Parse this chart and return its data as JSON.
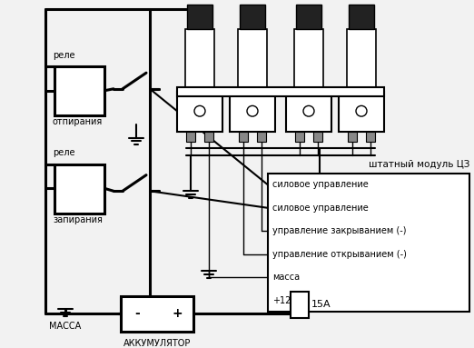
{
  "bg_color": "#f2f2f2",
  "line_color": "#000000",
  "relay1_label": [
    "реле",
    "отпирания"
  ],
  "relay2_label": [
    "реле",
    "запирания"
  ],
  "module_label": "штатный модуль ЦЗ",
  "connector_rows": [
    "силовое управление",
    "силовое управление",
    "управление закрыванием (-)",
    "управление открыванием (-)",
    "масса",
    "+12"
  ],
  "battery_labels": [
    "МАССА",
    "АККУМУЛЯТОР"
  ],
  "fuse_label": "15А"
}
